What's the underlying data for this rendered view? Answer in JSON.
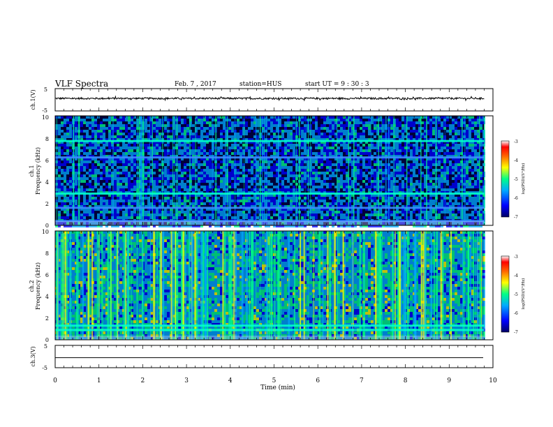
{
  "header": {
    "title": "VLF Spectra",
    "date": "Feb. 7 , 2017",
    "station": "station=HUS",
    "start": "start  UT =   9 : 30 : 3"
  },
  "chart_data": [
    {
      "type": "line",
      "name": "ch1-waveform",
      "ylabel": "ch.1(V)",
      "ylim": [
        -5,
        5
      ],
      "yticks": [
        "5",
        "-5"
      ],
      "xlim": [
        0,
        10
      ],
      "note_level": 0.6,
      "amplitude": 0.4
    },
    {
      "type": "heatmap",
      "name": "ch1-spectrogram",
      "ylabel_channel": "ch.1",
      "ylabel": "Frequency  (kHz)",
      "ylim": [
        0,
        10
      ],
      "yticks": [
        "0",
        "2",
        "4",
        "6",
        "8",
        "10"
      ],
      "xlim": [
        0,
        9.8
      ],
      "lines_khz": [
        7.7,
        2.9,
        6.2,
        1.6,
        0.4
      ],
      "colorbar": {
        "label": "log(PSD)(V²/Hz)",
        "range": [
          -7,
          -3
        ],
        "ticks": [
          "-3",
          "-4",
          "-5",
          "-6",
          "-7"
        ]
      }
    },
    {
      "type": "heatmap",
      "name": "ch2-spectrogram",
      "ylabel_channel": "ch.2",
      "ylabel": "Frequency  (kHz)",
      "ylim": [
        0,
        10
      ],
      "yticks": [
        "0",
        "2",
        "4",
        "6",
        "8",
        "10"
      ],
      "xlim": [
        0,
        9.8
      ],
      "lines_khz": [
        1.3,
        0.9
      ],
      "colorbar": {
        "label": "log(PSD)(V²/Hz)",
        "range": [
          -7,
          -3
        ],
        "ticks": [
          "-3",
          "-4",
          "-5",
          "-6",
          "-7"
        ]
      }
    },
    {
      "type": "line",
      "name": "ch3-waveform",
      "ylabel": "ch.3(V)",
      "ylim": [
        -5,
        5
      ],
      "yticks": [
        "5",
        "-5"
      ],
      "xlabel": "Time  (min)",
      "xlim": [
        0,
        10
      ],
      "xticks": [
        "0",
        "1",
        "2",
        "3",
        "4",
        "5",
        "6",
        "7",
        "8",
        "9",
        "10"
      ],
      "level": -0.5
    }
  ],
  "colors": {
    "map": [
      "#000066",
      "#0000ff",
      "#00aaff",
      "#00ff88",
      "#ffff00",
      "#ff8800",
      "#ff0000",
      "#ffffff"
    ]
  }
}
